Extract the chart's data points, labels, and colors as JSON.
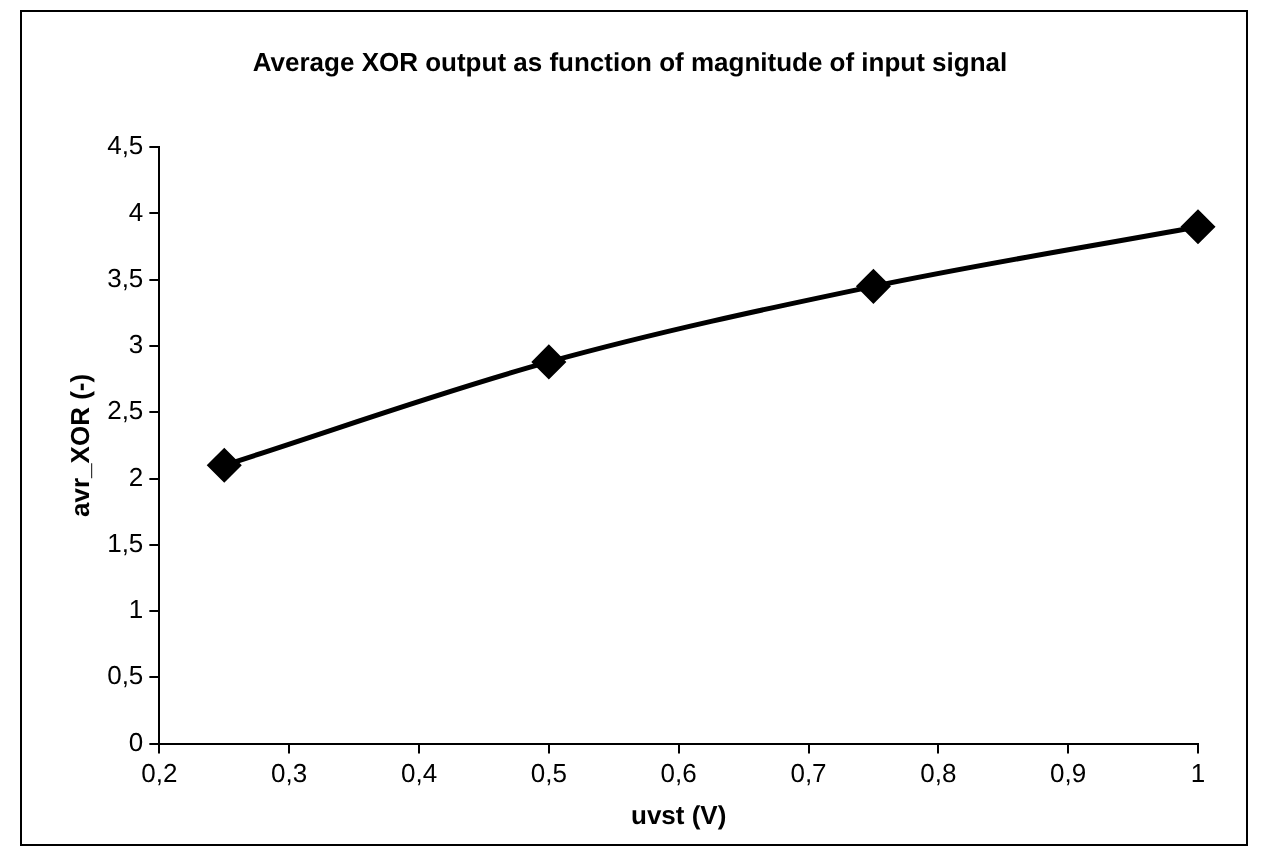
{
  "chart_data": {
    "type": "line",
    "title": "Average XOR output as function of magnitude of input signal",
    "xlabel": "uvst (V)",
    "ylabel": "avr_XOR (-)",
    "x": [
      0.25,
      0.5,
      0.75,
      1
    ],
    "series": [
      {
        "color": "#000000",
        "values": [
          2.1,
          2.88,
          3.45,
          3.9
        ]
      }
    ],
    "xlim": [
      0.2,
      1
    ],
    "xticks": [
      {
        "value": 0.2,
        "label": "0,2"
      },
      {
        "value": 0.3,
        "label": "0,3"
      },
      {
        "value": 0.4,
        "label": "0,4"
      },
      {
        "value": 0.5,
        "label": "0,5"
      },
      {
        "value": 0.6,
        "label": "0,6"
      },
      {
        "value": 0.7,
        "label": "0,7"
      },
      {
        "value": 0.8,
        "label": "0,8"
      },
      {
        "value": 0.9,
        "label": "0,9"
      },
      1
    ],
    "ylim": [
      0,
      4.5
    ],
    "yticks": [
      0,
      {
        "value": 0.5,
        "label": "0,5"
      },
      1,
      {
        "value": 1.5,
        "label": "1,5"
      },
      2,
      {
        "value": 2.5,
        "label": "2,5"
      },
      3,
      {
        "value": 3.5,
        "label": "3,5"
      },
      4,
      {
        "value": 4.5,
        "label": "4,5"
      }
    ],
    "grid": false,
    "legend": false,
    "marker": "diamond",
    "line_style": "solid"
  }
}
